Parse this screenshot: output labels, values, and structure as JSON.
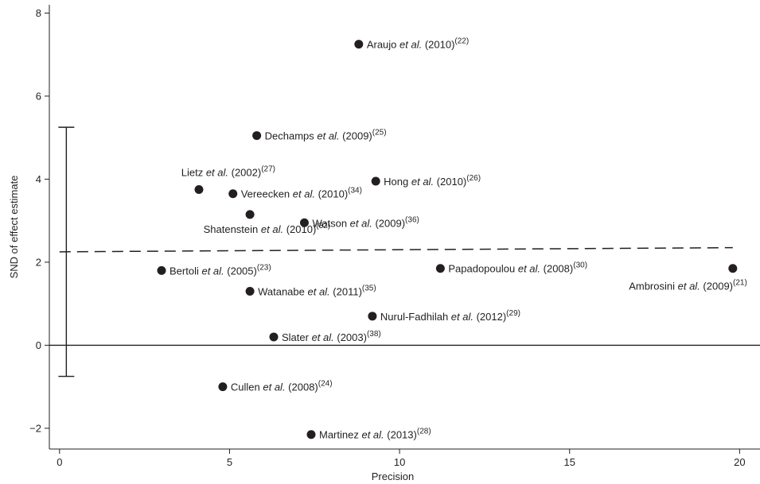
{
  "chart_data": {
    "type": "scatter",
    "title": "",
    "xlabel": "Precision",
    "ylabel": "SND of effect estimate",
    "xlim": [
      -0.3,
      20.6
    ],
    "ylim": [
      -2.5,
      8.2
    ],
    "xticks": [
      0,
      5,
      10,
      15,
      20
    ],
    "yticks": [
      -2,
      0,
      2,
      4,
      6,
      8
    ],
    "grid": false,
    "legend": "none",
    "series": [
      {
        "points": [
          {
            "x": 8.8,
            "y": 7.25,
            "author": "Araujo",
            "etal": "et al.",
            "year": "(2010)",
            "ref": "(22)",
            "label_pos": "right"
          },
          {
            "x": 5.8,
            "y": 5.05,
            "author": "Dechamps",
            "etal": "et al.",
            "year": "(2009)",
            "ref": "(25)",
            "label_pos": "right"
          },
          {
            "x": 4.1,
            "y": 3.75,
            "author": "Lietz",
            "etal": "et al.",
            "year": "(2002)",
            "ref": "(27)",
            "label_pos": "above"
          },
          {
            "x": 5.1,
            "y": 3.65,
            "author": "Vereecken",
            "etal": "et al.",
            "year": "(2010)",
            "ref": "(34)",
            "label_pos": "right"
          },
          {
            "x": 9.3,
            "y": 3.95,
            "author": "Hong",
            "etal": "et al.",
            "year": "(2010)",
            "ref": "(26)",
            "label_pos": "right"
          },
          {
            "x": 5.6,
            "y": 3.15,
            "author": "Shatenstein",
            "etal": "et al.",
            "year": "(2010)",
            "ref": "(32)",
            "label_pos": "below"
          },
          {
            "x": 7.2,
            "y": 2.95,
            "author": "Watson",
            "etal": "et al.",
            "year": "(2009)",
            "ref": "(36)",
            "label_pos": "right"
          },
          {
            "x": 3.0,
            "y": 1.8,
            "author": "Bertoli",
            "etal": "et al.",
            "year": "(2005)",
            "ref": "(23)",
            "label_pos": "right"
          },
          {
            "x": 11.2,
            "y": 1.85,
            "author": "Papadopoulou",
            "etal": "et al.",
            "year": "(2008)",
            "ref": "(30)",
            "label_pos": "right"
          },
          {
            "x": 19.8,
            "y": 1.85,
            "author": "Ambrosini",
            "etal": "et al.",
            "year": "(2009)",
            "ref": "(21)",
            "label_pos": "below-left"
          },
          {
            "x": 5.6,
            "y": 1.3,
            "author": "Watanabe",
            "etal": "et al.",
            "year": "(2011)",
            "ref": "(35)",
            "label_pos": "right"
          },
          {
            "x": 9.2,
            "y": 0.7,
            "author": "Nurul-Fadhilah",
            "etal": "et al.",
            "year": "(2012)",
            "ref": "(29)",
            "label_pos": "right"
          },
          {
            "x": 6.3,
            "y": 0.2,
            "author": "Slater",
            "etal": "et al.",
            "year": "(2003)",
            "ref": "(38)",
            "label_pos": "right"
          },
          {
            "x": 4.8,
            "y": -1.0,
            "author": "Cullen",
            "etal": "et al.",
            "year": "(2008)",
            "ref": "(24)",
            "label_pos": "right"
          },
          {
            "x": 7.4,
            "y": -2.15,
            "author": "Martinez",
            "etal": "et al.",
            "year": "(2013)",
            "ref": "(28)",
            "label_pos": "right"
          }
        ]
      }
    ],
    "regression_line": {
      "x": [
        0,
        19.8
      ],
      "y": [
        2.25,
        2.35
      ],
      "style": "dashed"
    },
    "zero_line": {
      "y": 0
    },
    "intercept_ci": {
      "x": 0.2,
      "low": -0.75,
      "high": 5.25
    },
    "colors": {
      "ink": "#231f20"
    }
  }
}
